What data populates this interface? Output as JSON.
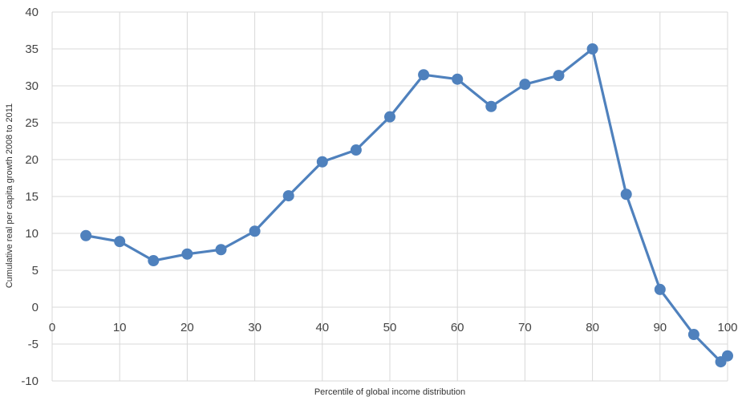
{
  "chart_data": {
    "type": "line",
    "title": "",
    "xlabel": "Percentile of global income distribution",
    "ylabel": "Cumulative real per capita growth 2008 to 2011",
    "xlim": [
      0,
      100
    ],
    "ylim": [
      -10,
      40
    ],
    "x_ticks": [
      0,
      10,
      20,
      30,
      40,
      50,
      60,
      70,
      80,
      90,
      100
    ],
    "y_ticks": [
      -10,
      -5,
      0,
      5,
      10,
      15,
      20,
      25,
      30,
      35,
      40
    ],
    "grid": true,
    "legend": "none",
    "series": [
      {
        "color": "#4f81bd",
        "x": [
          5,
          10,
          15,
          20,
          25,
          30,
          35,
          40,
          45,
          50,
          55,
          60,
          65,
          70,
          75,
          80,
          85,
          90,
          95,
          99,
          100
        ],
        "y": [
          9.7,
          8.9,
          6.3,
          7.2,
          7.8,
          10.3,
          15.1,
          19.7,
          21.3,
          25.8,
          31.5,
          30.9,
          27.2,
          30.2,
          31.4,
          35.0,
          15.3,
          2.4,
          -3.7,
          -7.4,
          -6.6
        ]
      }
    ]
  }
}
